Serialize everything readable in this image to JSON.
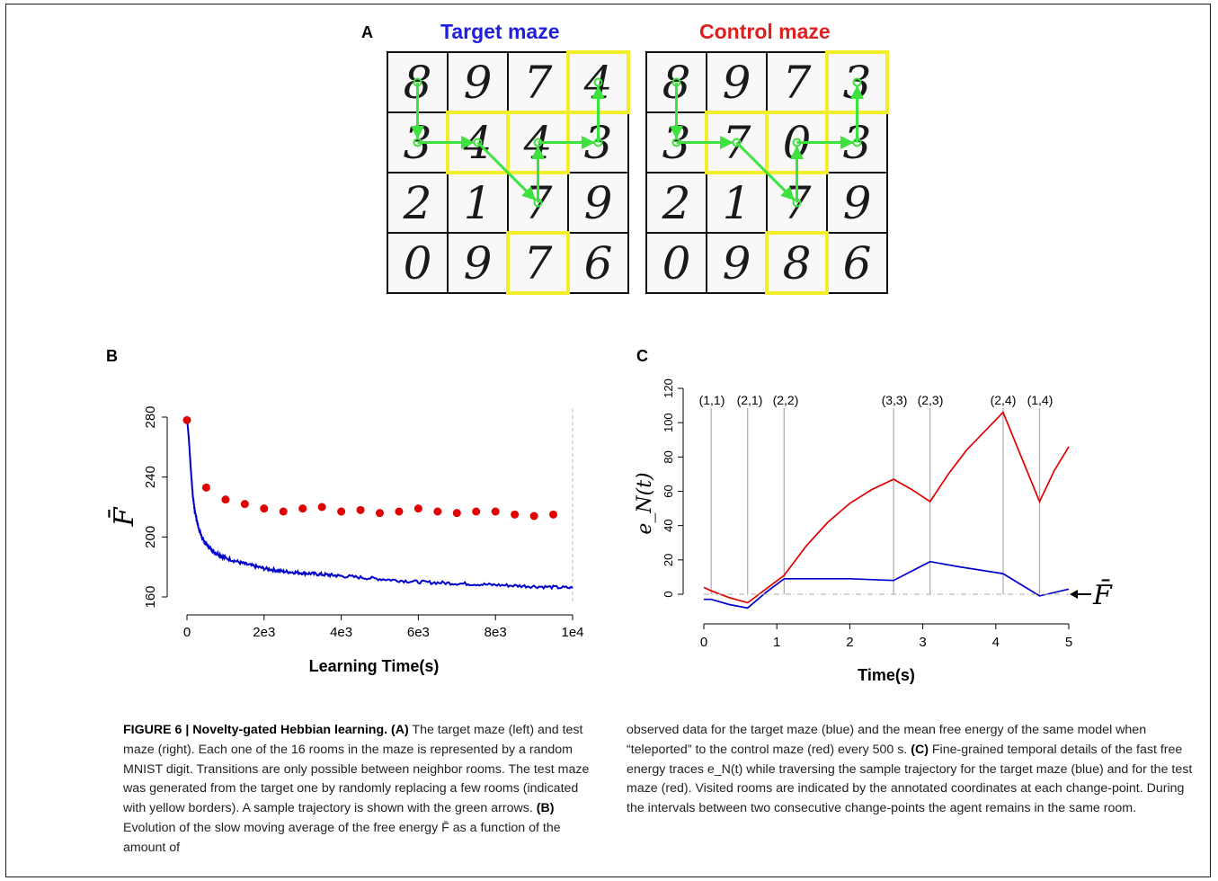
{
  "panel_a": {
    "letter": "A",
    "target_title": "Target maze",
    "control_title": "Control maze",
    "title_colors": {
      "target": "#1f1fe0",
      "control": "#e0201f"
    },
    "target_digits": [
      "8",
      "9",
      "7",
      "4",
      "3",
      "4",
      "4",
      "3",
      "2",
      "1",
      "7",
      "9",
      "0",
      "9",
      "7",
      "6"
    ],
    "control_digits": [
      "8",
      "9",
      "7",
      "3",
      "3",
      "7",
      "0",
      "3",
      "2",
      "1",
      "7",
      "9",
      "0",
      "9",
      "8",
      "6"
    ],
    "replaced_rooms": [
      [
        1,
        4
      ],
      [
        2,
        2
      ],
      [
        2,
        3
      ],
      [
        4,
        3
      ]
    ],
    "trajectory": [
      [
        1,
        1
      ],
      [
        2,
        1
      ],
      [
        2,
        2
      ],
      [
        3,
        3
      ],
      [
        2,
        3
      ],
      [
        2,
        4
      ],
      [
        1,
        4
      ]
    ],
    "highlight_color": "#f2ee2a",
    "arrow_color": "#3ee23e"
  },
  "panel_b": {
    "letter": "B",
    "xlabel": "Learning Time(s)",
    "ylabel": "F̄",
    "xticks": [
      "0",
      "2e3",
      "4e3",
      "6e3",
      "8e3",
      "1e4"
    ],
    "yticks": [
      "160",
      "200",
      "240",
      "280"
    ]
  },
  "panel_c": {
    "letter": "C",
    "xlabel": "Time(s)",
    "ylabel": "e_N(t)",
    "xticks": [
      "0",
      "1",
      "2",
      "3",
      "4",
      "5"
    ],
    "yticks": [
      "0",
      "20",
      "40",
      "60",
      "80",
      "100",
      "120"
    ],
    "change_point_labels": [
      "(1,1)",
      "(2,1)",
      "(2,2)",
      "(3,3)",
      "(2,3)",
      "(2,4)",
      "(1,4)"
    ],
    "fbar_marker": "F̄"
  },
  "chart_data": [
    {
      "type": "scatter",
      "xlabel": "Learning Time(s)",
      "ylabel": "F̄",
      "xlim": [
        0,
        10000
      ],
      "ylim": [
        160,
        280
      ],
      "series": [
        {
          "color": "#0000cc",
          "style": "line",
          "x": [
            0,
            50,
            100,
            150,
            200,
            300,
            400,
            500,
            700,
            1000,
            1500,
            2000,
            2500,
            3000,
            3500,
            4000,
            5000,
            6000,
            7000,
            8000,
            9000,
            10000
          ],
          "y": [
            280,
            265,
            245,
            228,
            218,
            206,
            199,
            195,
            190,
            186,
            182,
            179,
            177,
            176,
            175,
            174,
            172,
            170,
            169,
            168,
            167,
            166
          ]
        },
        {
          "color": "#e00000",
          "style": "points",
          "x": [
            0,
            500,
            1000,
            1500,
            2000,
            2500,
            3000,
            3500,
            4000,
            4500,
            5000,
            5500,
            6000,
            6500,
            7000,
            7500,
            8000,
            8500,
            9000,
            9500
          ],
          "y": [
            278,
            233,
            225,
            222,
            219,
            217,
            219,
            220,
            217,
            218,
            216,
            217,
            219,
            217,
            216,
            217,
            217,
            215,
            214,
            215
          ]
        }
      ]
    },
    {
      "type": "line",
      "xlabel": "Time(s)",
      "ylabel": "e_N(t)",
      "xlim": [
        0,
        5
      ],
      "ylim": [
        0,
        120
      ],
      "change_points": [
        0.1,
        0.6,
        1.1,
        2.6,
        3.1,
        4.1,
        4.6
      ],
      "change_point_labels": [
        "(1,1)",
        "(2,1)",
        "(2,2)",
        "(3,3)",
        "(2,3)",
        "(2,4)",
        "(1,4)"
      ],
      "series": [
        {
          "color": "#e00000",
          "x": [
            0,
            0.1,
            0.35,
            0.6,
            0.85,
            1.1,
            1.4,
            1.7,
            2.0,
            2.3,
            2.6,
            2.85,
            3.1,
            3.35,
            3.6,
            3.85,
            4.1,
            4.35,
            4.6,
            4.8,
            5.0
          ],
          "y": [
            4,
            2,
            -2,
            -5,
            3,
            11,
            28,
            42,
            53,
            61,
            67,
            61,
            54,
            70,
            84,
            95,
            106,
            80,
            54,
            72,
            86
          ]
        },
        {
          "color": "#0000cc",
          "x": [
            0,
            0.1,
            0.35,
            0.6,
            0.85,
            1.1,
            1.5,
            2.0,
            2.6,
            3.1,
            3.5,
            4.1,
            4.6,
            5.0
          ],
          "y": [
            -3,
            -3,
            -6,
            -8,
            1,
            9,
            9,
            9,
            8,
            19,
            16,
            12,
            -1,
            3
          ]
        },
        {
          "color": "#aaaaaa",
          "style": "dashed",
          "x": [
            0,
            5.0
          ],
          "y": [
            0,
            0
          ]
        }
      ]
    }
  ],
  "caption": {
    "col1": {
      "fig_label": "FIGURE 6 | Novelty-gated Hebbian learning.",
      "a_tag": "(A)",
      "a_text": "The target maze (left) and test maze (right). Each one of the 16 rooms in the maze is represented by a random MNIST digit. Transitions are only possible between neighbor rooms. The test maze was generated from the target one by randomly replacing a few rooms (indicated with yellow borders). A sample trajectory is shown with the green arrows.",
      "b_tag": "(B)",
      "b_text": "Evolution of the slow moving average of the free energy F̄ as a function of the amount of"
    },
    "col2": {
      "b_text_cont": "observed data for the target maze (blue) and the mean free energy of the same model when “teleported” to the control maze (red) every 500 s.",
      "c_tag": "(C)",
      "c_text": "Fine-grained temporal details of the fast free energy traces e_N(t) while traversing the sample trajectory for the target maze (blue) and for the test maze (red). Visited rooms are indicated by the annotated coordinates at each change-point. During the intervals between two consecutive change-points the agent remains in the same room."
    }
  }
}
